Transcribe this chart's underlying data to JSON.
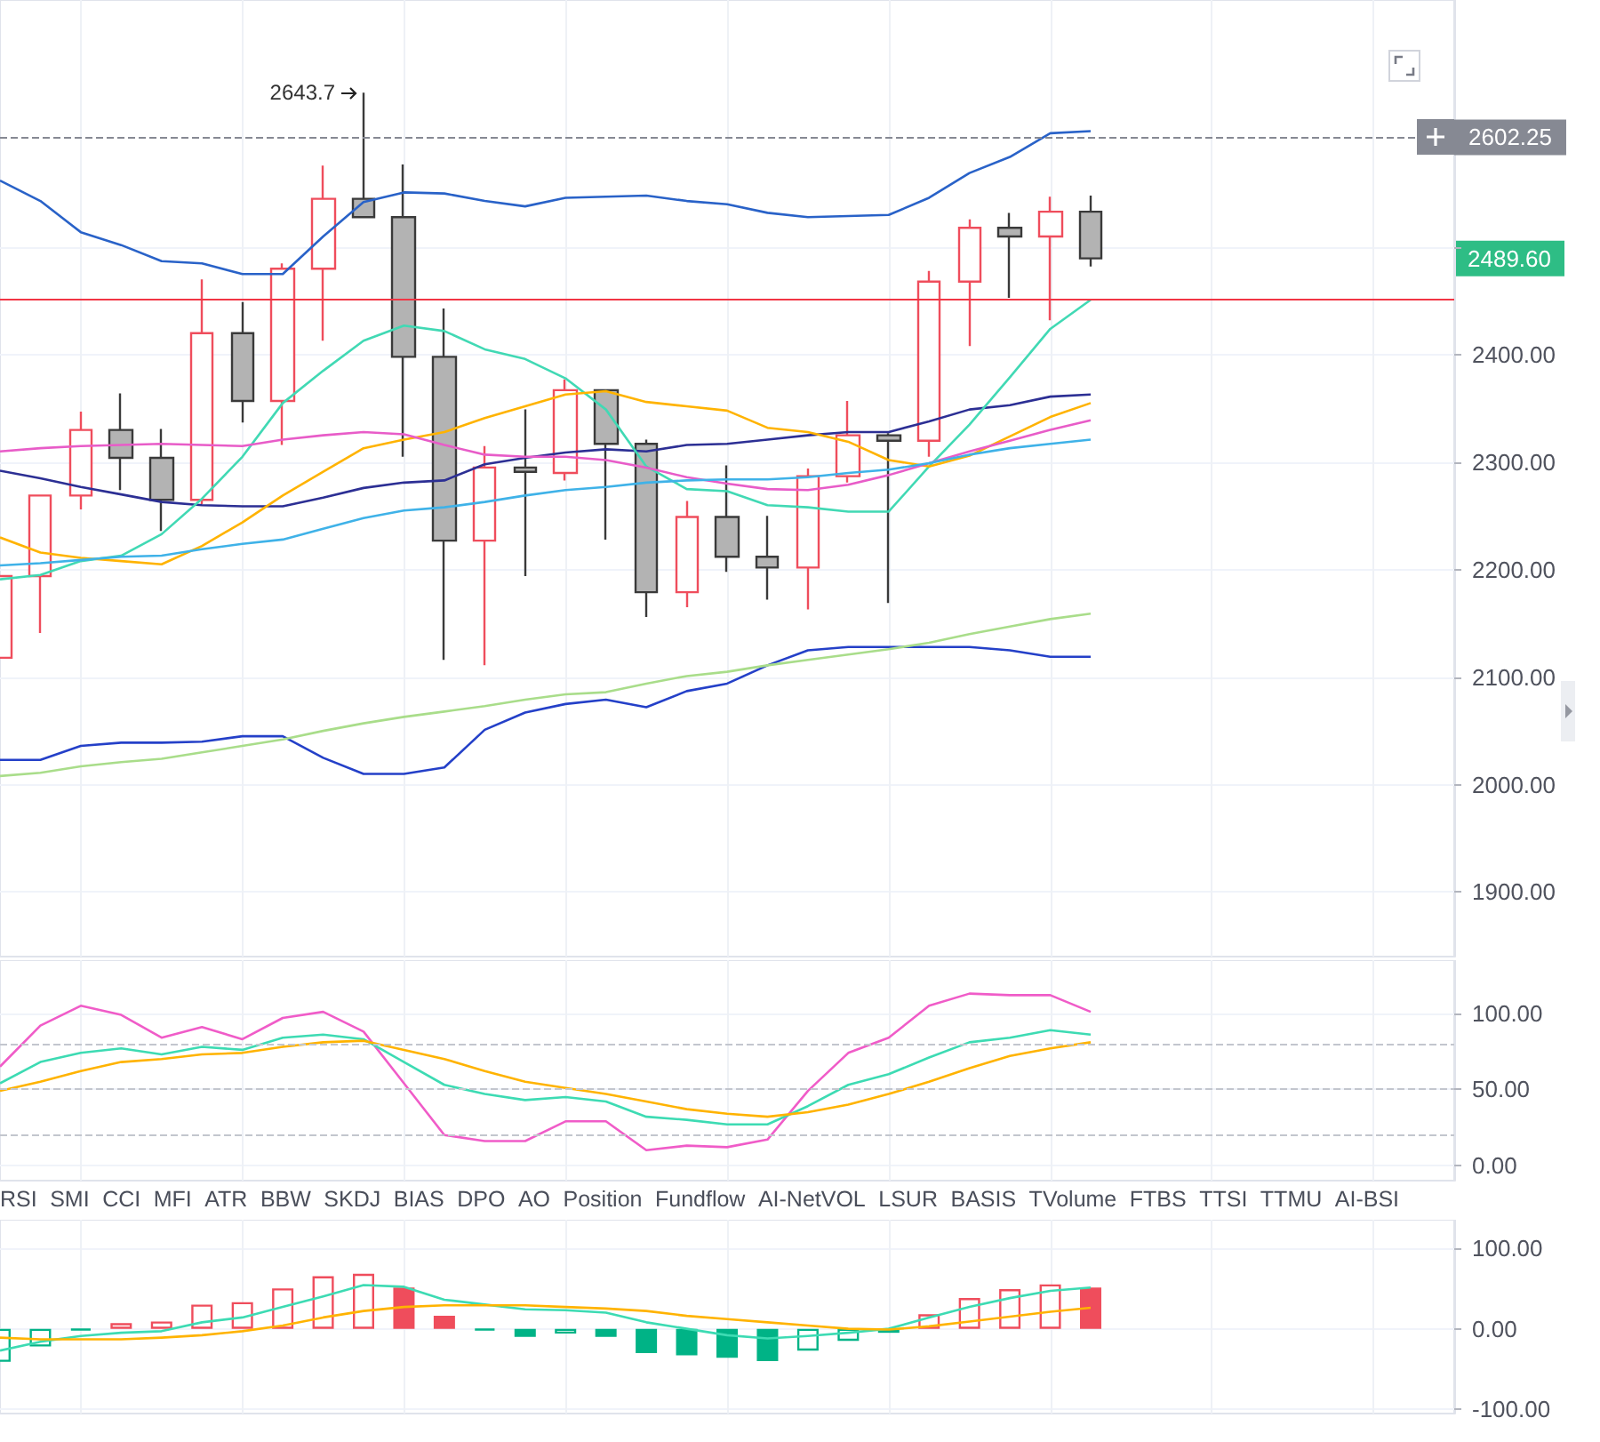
{
  "chart_data": [
    {
      "type": "candlestick",
      "categories": [
        null,
        null,
        null,
        null,
        null,
        null,
        null,
        null,
        null,
        null,
        null,
        null,
        null,
        null,
        null,
        null,
        null,
        null,
        null,
        null,
        null,
        null,
        null,
        null,
        null,
        null,
        null,
        null,
        null,
        null,
        null,
        null,
        null,
        null,
        null,
        null,
        null
      ],
      "ohlc": [
        [
          2118,
          2194,
          2118,
          2194
        ],
        [
          2194,
          2270,
          2141,
          2269
        ],
        [
          2269,
          2347,
          2256,
          2330
        ],
        [
          2330,
          2364,
          2274,
          2304
        ],
        [
          2304,
          2331,
          2236,
          2265
        ],
        [
          2265,
          2470,
          2261,
          2420
        ],
        [
          2420,
          2449,
          2337,
          2357
        ],
        [
          2357,
          2485,
          2316,
          2480
        ],
        [
          2480,
          2576,
          2413,
          2545
        ],
        [
          2545,
          2643.7,
          2528,
          2528
        ],
        [
          2528,
          2577,
          2305,
          2398
        ],
        [
          2398,
          2443,
          2116,
          2227
        ],
        [
          2227,
          2315,
          2111,
          2295
        ],
        [
          2295,
          2349,
          2194,
          2291
        ],
        [
          2290,
          2377,
          2283,
          2367
        ],
        [
          2367,
          2368,
          2228,
          2317
        ],
        [
          2317,
          2321,
          2156,
          2179
        ],
        [
          2179,
          2264,
          2165,
          2249
        ],
        [
          2249,
          2297,
          2198,
          2212
        ],
        [
          2212,
          2250,
          2172,
          2202
        ],
        [
          2202,
          2294,
          2163,
          2287
        ],
        [
          2287,
          2357,
          2281,
          2325
        ],
        [
          2325,
          2327,
          2169,
          2320
        ],
        [
          2320,
          2478,
          2305,
          2468
        ],
        [
          2468,
          2526,
          2408,
          2518
        ],
        [
          2518,
          2532,
          2453,
          2510
        ],
        [
          2510,
          2547,
          2432,
          2533
        ],
        [
          2533,
          2548,
          2482,
          2489.6
        ],
        null,
        null,
        null,
        null,
        null,
        null,
        null,
        null,
        null
      ],
      "series": [
        {
          "type": "line",
          "color": "#2962c8",
          "values": [
            2562,
            2543,
            2514,
            2502,
            2487,
            2485,
            2475,
            2475,
            2510,
            2542,
            2551,
            2550,
            2543,
            2538,
            2546,
            2547,
            2548,
            2543,
            2540,
            2532,
            2528,
            2529,
            2530,
            2546,
            2569,
            2584,
            2606,
            2608,
            null,
            null,
            null,
            null,
            null,
            null,
            null,
            null,
            null
          ]
        },
        {
          "type": "line",
          "color": "#2440c8",
          "values": [
            2023,
            2023,
            2036,
            2039,
            2039,
            2040,
            2045,
            2045,
            2025,
            2010,
            2010,
            2016,
            2051,
            2067,
            2075,
            2079,
            2072,
            2087,
            2094,
            2111,
            2125,
            2128,
            2128,
            2128,
            2128,
            2125,
            2119,
            2119,
            null,
            null,
            null,
            null,
            null,
            null,
            null,
            null,
            null
          ]
        },
        {
          "type": "line",
          "color": "#2c2f94",
          "values": [
            2292,
            2285,
            2277,
            2270,
            2263,
            2260,
            2259,
            2259,
            2267,
            2276,
            2281,
            2283,
            2298,
            2304,
            2309,
            2312,
            2310,
            2316,
            2317,
            2321,
            2325,
            2328,
            2328,
            2338,
            2349,
            2353,
            2361,
            2363,
            null,
            null,
            null,
            null,
            null,
            null,
            null,
            null,
            null
          ]
        },
        {
          "type": "line",
          "color": "#41d9b4",
          "values": [
            2191,
            2195,
            2208,
            2213,
            2233,
            2266,
            2305,
            2355,
            2385,
            2413,
            2427,
            2422,
            2405,
            2396,
            2378,
            2349,
            2296,
            2275,
            2273,
            2260,
            2258,
            2254,
            2254,
            2296,
            2335,
            2379,
            2424,
            2451,
            null,
            null,
            null,
            null,
            null,
            null,
            null,
            null,
            null
          ]
        },
        {
          "type": "line",
          "color": "#ffb300",
          "values": [
            2230,
            2216,
            2211,
            2208,
            2205,
            2222,
            2244,
            2269,
            2291,
            2313,
            2321,
            2328,
            2341,
            2352,
            2363,
            2366,
            2356,
            2352,
            2348,
            2332,
            2328,
            2319,
            2302,
            2296,
            2306,
            2324,
            2342,
            2355,
            null,
            null,
            null,
            null,
            null,
            null,
            null,
            null,
            null
          ]
        },
        {
          "type": "line",
          "color": "#e85cc8",
          "values": [
            2310,
            2313,
            2315,
            2316,
            2317,
            2316,
            2315,
            2321,
            2325,
            2328,
            2326,
            2316,
            2307,
            2305,
            2305,
            2302,
            2295,
            2286,
            2280,
            2275,
            2274,
            2279,
            2288,
            2299,
            2310,
            2320,
            2330,
            2339,
            null,
            null,
            null,
            null,
            null,
            null,
            null,
            null,
            null
          ]
        },
        {
          "type": "line",
          "color": "#3fb2e8",
          "values": [
            2204,
            2206,
            2209,
            2212,
            2213,
            2219,
            2224,
            2228,
            2238,
            2248,
            2255,
            2258,
            2263,
            2269,
            2274,
            2277,
            2281,
            2283,
            2284,
            2284,
            2286,
            2290,
            2293,
            2299,
            2307,
            2313,
            2317,
            2321,
            null,
            null,
            null,
            null,
            null,
            null,
            null,
            null,
            null
          ]
        },
        {
          "type": "line",
          "color": "#a9dd8a",
          "values": [
            2008,
            2011,
            2017,
            2021,
            2024,
            2030,
            2036,
            2042,
            2050,
            2057,
            2063,
            2068,
            2073,
            2079,
            2084,
            2086,
            2094,
            2101,
            2105,
            2111,
            2116,
            2121,
            2126,
            2132,
            2140,
            2147,
            2154,
            2159,
            null,
            null,
            null,
            null,
            null,
            null,
            null,
            null,
            null
          ]
        }
      ],
      "ylim": [
        1840,
        2730
      ],
      "yticks": [
        {
          "value": 1900,
          "label": "1900.00"
        },
        {
          "value": 2000,
          "label": "2000.00"
        },
        {
          "value": 2100,
          "label": "2100.00"
        },
        {
          "value": 2200,
          "label": "2200.00"
        },
        {
          "value": 2300,
          "label": "2300.00"
        },
        {
          "value": 2400,
          "label": "2400.00"
        },
        {
          "value": 2500,
          "label": null
        }
      ],
      "ref_lines": [
        {
          "axis": "y",
          "value": 2451,
          "color": "#f23645"
        },
        {
          "axis": "y",
          "value": 2602.25,
          "label": "2602.25",
          "color": "#868993",
          "line_style": "dashed"
        }
      ],
      "annotations": [
        "2643.7",
        "2489.60"
      ],
      "grid": true,
      "marker": "none",
      "tick_labels": "y"
    },
    {
      "type": "line",
      "categories": [
        null,
        null,
        null,
        null,
        null,
        null,
        null,
        null,
        null,
        null,
        null,
        null,
        null,
        null,
        null,
        null,
        null,
        null,
        null,
        null,
        null,
        null,
        null,
        null,
        null,
        null,
        null,
        null,
        null,
        null,
        null,
        null,
        null,
        null,
        null,
        null,
        null
      ],
      "series": [
        {
          "color": "#f05cc8",
          "values": [
            65,
            92,
            105,
            99,
            84,
            91,
            83,
            97,
            101,
            88,
            54,
            20,
            16,
            16,
            29,
            29,
            10,
            13,
            12,
            17,
            49,
            74,
            84,
            105,
            113,
            112,
            112,
            101,
            null,
            null,
            null,
            null,
            null,
            null,
            null,
            null,
            null
          ]
        },
        {
          "color": "#3ddbb3",
          "values": [
            54,
            68,
            74,
            77,
            73,
            78,
            76,
            84,
            86,
            83,
            68,
            53,
            47,
            43,
            45,
            42,
            32,
            30,
            27,
            27,
            39,
            53,
            60,
            71,
            81,
            84,
            89,
            86,
            null,
            null,
            null,
            null,
            null,
            null,
            null,
            null,
            null
          ]
        },
        {
          "color": "#ffb300",
          "values": [
            49,
            55,
            62,
            68,
            70,
            73,
            74,
            78,
            81,
            82,
            76,
            70,
            62,
            55,
            51,
            47,
            42,
            37,
            34,
            32,
            35,
            40,
            47,
            55,
            64,
            72,
            77,
            81,
            null,
            null,
            null,
            null,
            null,
            null,
            null,
            null,
            null
          ]
        }
      ],
      "ylim": [
        -10,
        135
      ],
      "yticks": [
        {
          "value": 0,
          "label": "0.00"
        },
        {
          "value": 50,
          "label": "50.00"
        },
        {
          "value": 100,
          "label": "100.00"
        }
      ],
      "ref_lines": [
        {
          "axis": "y",
          "value": 20,
          "color": "#c3c6ce",
          "line_style": "dashed"
        },
        {
          "axis": "y",
          "value": 50,
          "color": "#c3c6ce",
          "line_style": "dashed"
        },
        {
          "axis": "y",
          "value": 80,
          "color": "#c3c6ce",
          "line_style": "dashed"
        }
      ],
      "annotations": [
        "RSI",
        "SMI",
        "CCI",
        "MFI",
        "ATR",
        "BBW",
        "SKDJ",
        "BIAS",
        "DPO",
        "AO",
        "Position",
        "Fundflow",
        "AI-NetVOL",
        "LSUR",
        "BASIS",
        "TVolume",
        "FTBS",
        "TTSI",
        "TTMU",
        "AI-BSI"
      ],
      "grid": true,
      "marker": "none",
      "tick_labels": "y"
    },
    {
      "type": "bar",
      "categories": [
        null,
        null,
        null,
        null,
        null,
        null,
        null,
        null,
        null,
        null,
        null,
        null,
        null,
        null,
        null,
        null,
        null,
        null,
        null,
        null,
        null,
        null,
        null,
        null,
        null,
        null,
        null,
        null,
        null,
        null,
        null,
        null,
        null,
        null,
        null,
        null,
        null
      ],
      "series": [
        {
          "type": "bar",
          "values": [
            -41,
            -22,
            -2,
            7,
            9,
            30,
            33,
            50,
            65,
            68,
            51,
            16,
            -2,
            -10,
            -6,
            -10,
            -30,
            -33,
            -36,
            -40,
            -27,
            -15,
            -5,
            18,
            38,
            49,
            55,
            51,
            null,
            null,
            null,
            null,
            null,
            null,
            null,
            null,
            null
          ],
          "colors": [
            "#00b386",
            "#00b386",
            "#00b386",
            "#ef4d5c",
            "#ef4d5c",
            "#ef4d5c",
            "#ef4d5c",
            "#ef4d5c",
            "#ef4d5c",
            "#ef4d5c",
            "#ef4d5c",
            "#ef4d5c",
            "#00b386",
            "#00b386",
            "#00b386",
            "#00b386",
            "#00b386",
            "#00b386",
            "#00b386",
            "#00b386",
            "#00b386",
            "#00b386",
            "#00b386",
            "#ef4d5c",
            "#ef4d5c",
            "#ef4d5c",
            "#ef4d5c",
            "#ef4d5c",
            null,
            null,
            null,
            null,
            null,
            null,
            null,
            null,
            null
          ]
        },
        {
          "type": "line",
          "color": "#3ddbb3",
          "values": [
            -27,
            -16,
            -9,
            -5,
            -3,
            8,
            14,
            27,
            40,
            54,
            52,
            36,
            30,
            24,
            23,
            20,
            8,
            0,
            -8,
            -12,
            -9,
            -5,
            0,
            14,
            27,
            38,
            47,
            51,
            null,
            null,
            null,
            null,
            null,
            null,
            null,
            null,
            null
          ]
        },
        {
          "type": "line",
          "color": "#ffb300",
          "values": [
            -11,
            -13,
            -13,
            -13,
            -11,
            -8,
            -3,
            4,
            14,
            22,
            27,
            29,
            29,
            29,
            27,
            25,
            22,
            16,
            12,
            8,
            4,
            0,
            -1,
            3,
            9,
            15,
            21,
            26,
            null,
            null,
            null,
            null,
            null,
            null,
            null,
            null,
            null
          ]
        }
      ],
      "ylim": [
        -105,
        135
      ],
      "yticks": [
        {
          "value": -100,
          "label": "-100.00"
        },
        {
          "value": 0,
          "label": "0.00"
        },
        {
          "value": 100,
          "label": "100.00"
        }
      ],
      "grid": true,
      "marker": "none",
      "tick_labels": "y"
    }
  ]
}
